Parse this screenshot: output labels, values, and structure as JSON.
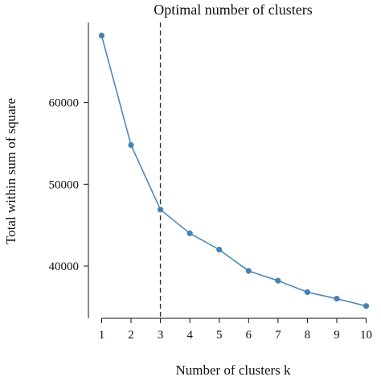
{
  "chart_data": {
    "type": "line",
    "title": "Optimal number of clusters",
    "xlabel": "Number of clusters k",
    "ylabel": "Total within sum of square",
    "x": [
      1,
      2,
      3,
      4,
      5,
      6,
      7,
      8,
      9,
      10
    ],
    "x_tick_labels": [
      "1",
      "2",
      "3",
      "4",
      "5",
      "6",
      "7",
      "8",
      "9",
      "10"
    ],
    "y_ticks": [
      40000,
      50000,
      60000
    ],
    "y_tick_labels": [
      "40000",
      "50000",
      "60000"
    ],
    "series": [
      {
        "values": [
          68200,
          54800,
          46900,
          44000,
          42000,
          39400,
          38200,
          36800,
          36000,
          35100
        ]
      }
    ],
    "xlim": [
      0.55,
      10.45
    ],
    "ylim": [
      33600,
      69800
    ],
    "optimal_k": 3,
    "grid": false,
    "colors": {
      "series": "#4682b4",
      "reference_line": "#333333"
    }
  }
}
